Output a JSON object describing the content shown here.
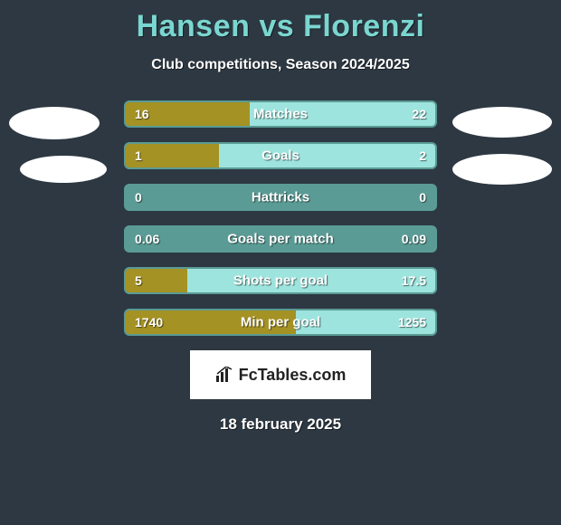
{
  "title": "Hansen vs Florenzi",
  "subtitle": "Club competitions, Season 2024/2025",
  "date": "18 february 2025",
  "logo_text": "FcTables.com",
  "colors": {
    "bg": "#2d3842",
    "title": "#7ad6d0",
    "bar_left": "#a59224",
    "bar_right": "#9ee4de",
    "bar_border": "#5b9b95",
    "text": "#ffffff"
  },
  "stats": [
    {
      "label": "Matches",
      "left_val": "16",
      "right_val": "22",
      "left_pct": 40,
      "right_pct": 60
    },
    {
      "label": "Goals",
      "left_val": "1",
      "right_val": "2",
      "left_pct": 30,
      "right_pct": 70
    },
    {
      "label": "Hattricks",
      "left_val": "0",
      "right_val": "0",
      "left_pct": 0,
      "right_pct": 0
    },
    {
      "label": "Goals per match",
      "left_val": "0.06",
      "right_val": "0.09",
      "left_pct": 0,
      "right_pct": 0
    },
    {
      "label": "Shots per goal",
      "left_val": "5",
      "right_val": "17.5",
      "left_pct": 20,
      "right_pct": 80
    },
    {
      "label": "Min per goal",
      "left_val": "1740",
      "right_val": "1255",
      "left_pct": 55,
      "right_pct": 45
    }
  ]
}
